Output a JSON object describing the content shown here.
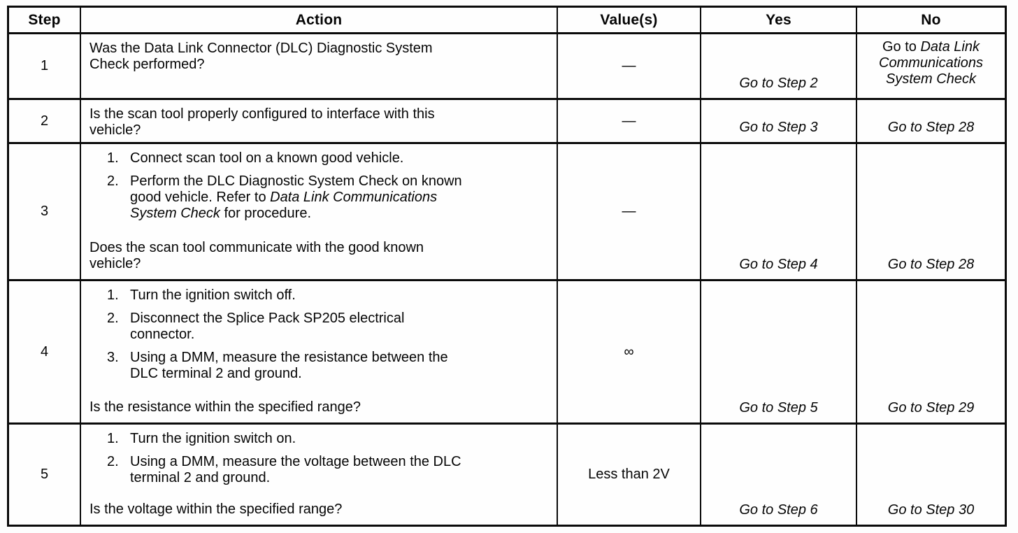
{
  "table": {
    "headers": {
      "step": "Step",
      "action": "Action",
      "values": "Value(s)",
      "yes": "Yes",
      "no": "No"
    },
    "rows": [
      {
        "step": "1",
        "action": "Was the Data Link Connector (DLC) Diagnostic System Check performed?",
        "value": "—",
        "yes": "Go to Step 2",
        "no_pre": "Go to ",
        "no_italic": "Data Link Communications System Check"
      },
      {
        "step": "2",
        "action": "Is the scan tool properly configured to interface with this vehicle?",
        "value": "—",
        "yes": "Go to Step 3",
        "no": "Go to Step 28"
      },
      {
        "step": "3",
        "items": [
          {
            "num": "1.",
            "text": "Connect scan tool on a known good vehicle."
          },
          {
            "num": "2.",
            "pre": "Perform the DLC Diagnostic System Check on known good vehicle. Refer to ",
            "italic": "Data Link Communications System Check",
            "post": " for procedure."
          }
        ],
        "question": "Does the scan tool communicate with the good known vehicle?",
        "value": "—",
        "yes": "Go to Step 4",
        "no": "Go to Step 28"
      },
      {
        "step": "4",
        "items": [
          {
            "num": "1.",
            "text": "Turn the ignition switch off."
          },
          {
            "num": "2.",
            "text": "Disconnect the Splice Pack SP205 electrical connector."
          },
          {
            "num": "3.",
            "text": "Using a DMM, measure the resistance between the DLC terminal 2 and ground."
          }
        ],
        "question": "Is the resistance within the specified range?",
        "value": "∞",
        "yes": "Go to Step 5",
        "no": "Go to Step 29"
      },
      {
        "step": "5",
        "items": [
          {
            "num": "1.",
            "text": "Turn the ignition switch on."
          },
          {
            "num": "2.",
            "text": "Using a DMM, measure the voltage between the DLC terminal 2 and ground."
          }
        ],
        "question": "Is the voltage within the specified range?",
        "value": "Less than 2V",
        "yes": "Go to Step 6",
        "no": "Go to Step 30"
      }
    ]
  }
}
